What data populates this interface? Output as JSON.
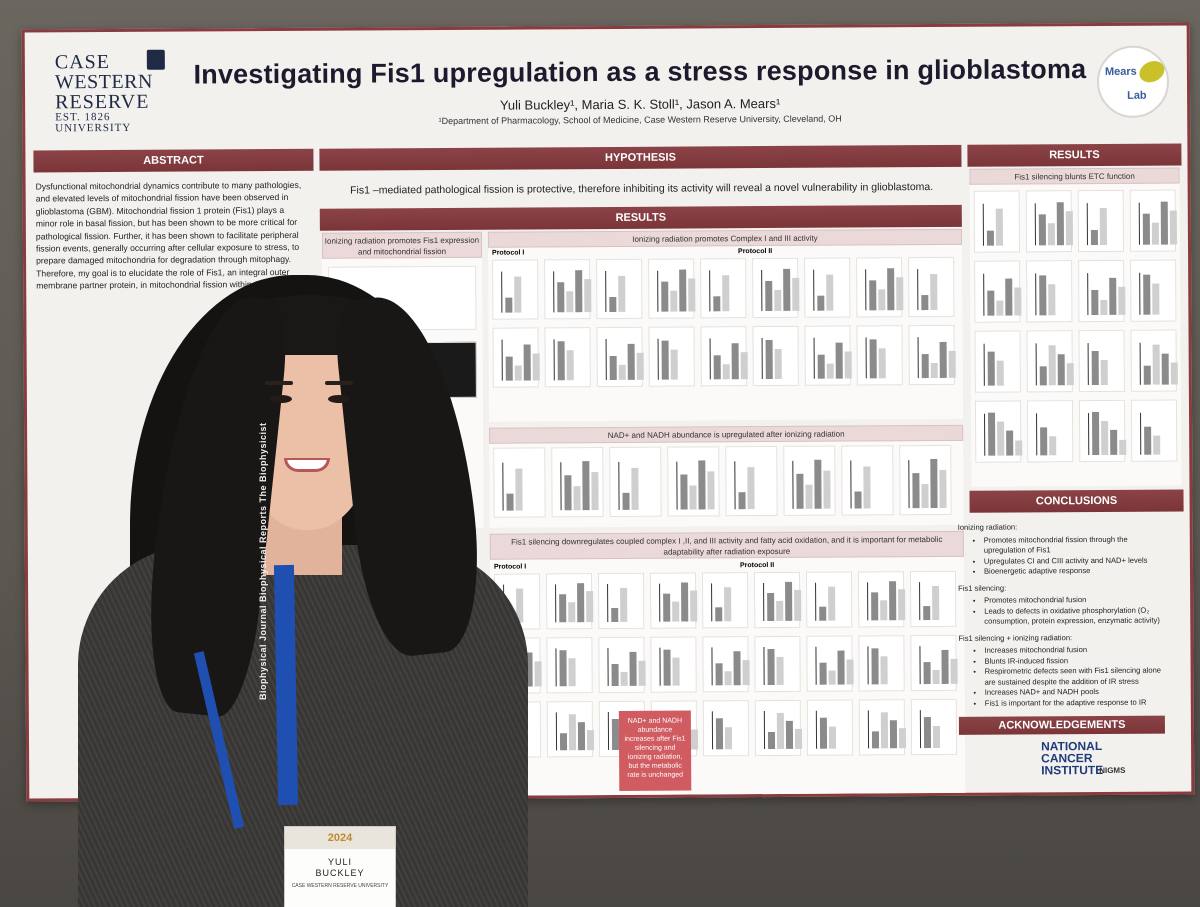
{
  "poster": {
    "title": "Investigating Fis1 upregulation as  a stress response in glioblastoma",
    "authors": "Yuli Buckley¹, Maria S. K. Stoll¹, Jason A. Mears¹",
    "affiliation": "¹Department of Pharmacology, School of Medicine, Case Western Reserve University, Cleveland, OH",
    "logo_left": {
      "line1": "CASE",
      "line2": "WESTERN",
      "line3": "RESERVE",
      "line4": "UNIVERSITY",
      "est": "EST. 1826"
    },
    "logo_right": {
      "line1": "Mears",
      "line2": "Lab"
    },
    "sections": {
      "abstract": "ABSTRACT",
      "hypothesis": "HYPOTHESIS",
      "results_center": "RESULTS",
      "results_right": "RESULTS",
      "conclusions": "CONCLUSIONS",
      "acknowledgements": "ACKNOWLEDGEMENTS"
    },
    "abstract_text": "Dysfunctional mitochondrial dynamics contribute to many pathologies, and elevated levels of mitochondrial fission have been observed in glioblastoma (GBM). Mitochondrial fission 1 protein (Fis1) plays a minor role in basal fission, but has been shown to be more critical for pathological fission. Further, it has been shown to facilitate peripheral fission events, generally occurring after cellular exposure to stress, to prepare damaged mitochondria for degradation through mitophagy. Therefore, my goal is to elucidate the role of Fis1, an integral outer membrane partner protein, in mitochondrial fission within GBM cells.",
    "hypothesis_text": "Fis1 –mediated pathological fission is protective, therefore inhibiting its activity will reveal a novel vulnerability in glioblastoma.",
    "subsections": {
      "ir_fis1": "Ionizing radiation promotes Fis1 expression and mitochondrial fission",
      "ir_complex": "Ionizing radiation promotes Complex I and III activity",
      "nad": "NAD+ and NADH abundance is upregulated after ionizing radiation",
      "silencing": "Fis1 silencing downregulates coupled complex I ,II, and III activity and fatty acid oxidation, and it is important for metabolic adaptability after radiation exposure",
      "etc": "Fis1 silencing blunts ETC function"
    },
    "protocol_labels": [
      "Protocol I",
      "Protocol II",
      "Protocol I",
      "Protocol II"
    ],
    "red_box_text": "NAD+ and NADH abundance increases after Fis1 silencing and ionizing radiation, but the metabolic rate is unchanged",
    "conclusions": {
      "groups": [
        {
          "label": "Ionizing radiation:",
          "items": [
            "Promotes mitochondrial fission through the upregulation of Fis1",
            "Upregulates CI and CIII activity and NAD+ levels",
            "Bioenergetic adaptive response"
          ]
        },
        {
          "label": "Fis1 silencing:",
          "items": [
            "Promotes mitochondrial fusion",
            "Leads to defects in oxidative phosphorylation (O₂ consumption, protein expression, enzymatic activity)"
          ]
        },
        {
          "label": "Fis1 silencing + ionizing radiation:",
          "items": [
            "Increases mitochondrial fusion",
            "Blunts IR-induced fission",
            "Respirometric defects seen with Fis1 silencing alone are sustained despite the addition of IR stress",
            "Increases NAD+ and NADH pools",
            "Fis1 is important for the adaptive response to IR"
          ]
        }
      ]
    },
    "sponsors": {
      "nci_line1": "NATIONAL",
      "nci_line2": "CANCER",
      "nci_line3": "INSTITUTE",
      "nigms": "NIGMS"
    }
  },
  "person": {
    "lanyard_text": "Biophysical Journal  Biophysical Reports  The Biophysicist",
    "badge": {
      "event": "2024",
      "first": "YULI",
      "last": "BUCKLEY",
      "affiliation": "CASE WESTERN RESERVE UNIVERSITY"
    }
  },
  "colors": {
    "accent": "#8b4347",
    "lanyard": "#1f4fb0",
    "poster_bg": "#f3f1ee"
  }
}
